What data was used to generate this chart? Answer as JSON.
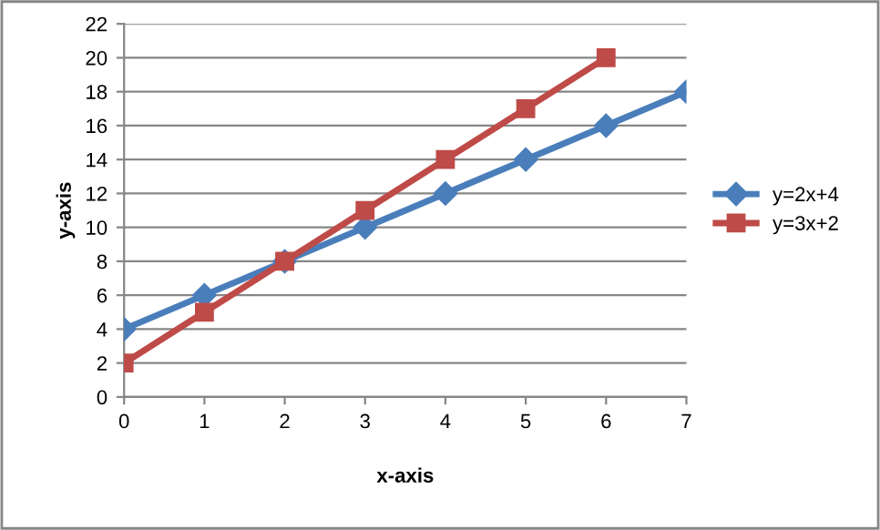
{
  "chart_data": {
    "type": "line",
    "xlabel": "x-axis",
    "ylabel": "y-axis",
    "x": [
      0,
      1,
      2,
      3,
      4,
      5,
      6,
      7
    ],
    "series": [
      {
        "name": "y=2x+4",
        "color": "#4a7ebb",
        "marker": "diamond",
        "values": [
          4,
          6,
          8,
          10,
          12,
          14,
          16,
          18
        ]
      },
      {
        "name": "y=3x+2",
        "color": "#be4b48",
        "marker": "square",
        "values": [
          2,
          5,
          8,
          11,
          14,
          17,
          20,
          null
        ]
      }
    ],
    "xlim": [
      0,
      7
    ],
    "xticks": [
      0,
      1,
      2,
      3,
      4,
      5,
      6,
      7
    ],
    "ylim": [
      0,
      22
    ],
    "yticks": [
      0,
      2,
      4,
      6,
      8,
      10,
      12,
      14,
      16,
      18,
      20,
      22
    ],
    "grid": "y",
    "legend": "right",
    "line_style": "solid"
  }
}
